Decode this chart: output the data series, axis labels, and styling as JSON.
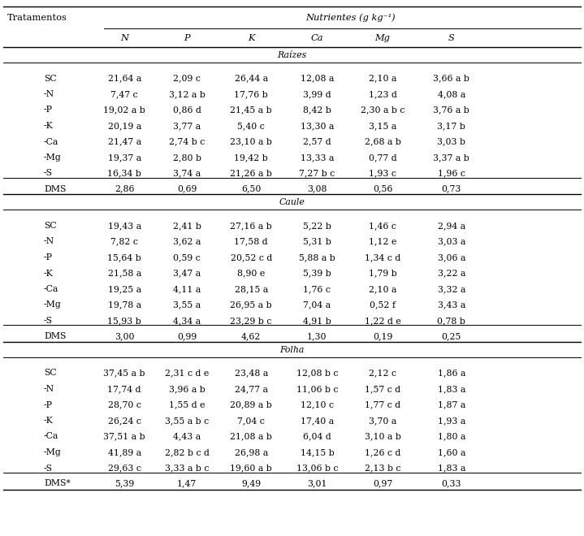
{
  "header_col1": "Tratamentos",
  "header_group": "Nutrientes (g kg⁻¹)",
  "subheaders": [
    "N",
    "P",
    "K",
    "Ca",
    "Mg",
    "S"
  ],
  "sections": [
    {
      "name": "Raízes",
      "rows": [
        [
          "SC",
          "21,64 a",
          "2,09 c",
          "26,44 a",
          "12,08 a",
          "2,10 a",
          "3,66 a b"
        ],
        [
          "-N",
          "7,47 c",
          "3,12 a b",
          "17,76 b",
          "3,99 d",
          "1,23 d",
          "4,08 a"
        ],
        [
          "-P",
          "19,02 a b",
          "0,86 d",
          "21,45 a b",
          "8,42 b",
          "2,30 a b c",
          "3,76 a b"
        ],
        [
          "-K",
          "20,19 a",
          "3,77 a",
          "5,40 c",
          "13,30 a",
          "3,15 a",
          "3,17 b"
        ],
        [
          "-Ca",
          "21,47 a",
          "2,74 b c",
          "23,10 a b",
          "2,57 d",
          "2,68 a b",
          "3,03 b"
        ],
        [
          "-Mg",
          "19,37 a",
          "2,80 b",
          "19,42 b",
          "13,33 a",
          "0,77 d",
          "3,37 a b"
        ],
        [
          "-S",
          "16,34 b",
          "3,74 a",
          "21,26 a b",
          "7,27 b c",
          "1,93 c",
          "1,96 c"
        ]
      ],
      "dms": [
        "DMS",
        "2,86",
        "0,69",
        "6,50",
        "3,08",
        "0,56",
        "0,73"
      ]
    },
    {
      "name": "Caule",
      "rows": [
        [
          "SC",
          "19,43 a",
          "2,41 b",
          "27,16 a b",
          "5,22 b",
          "1,46 c",
          "2,94 a"
        ],
        [
          "-N",
          "7,82 c",
          "3,62 a",
          "17,58 d",
          "5,31 b",
          "1,12 e",
          "3,03 a"
        ],
        [
          "-P",
          "15,64 b",
          "0,59 c",
          "20,52 c d",
          "5,88 a b",
          "1,34 c d",
          "3,06 a"
        ],
        [
          "-K",
          "21,58 a",
          "3,47 a",
          "8,90 e",
          "5,39 b",
          "1,79 b",
          "3,22 a"
        ],
        [
          "-Ca",
          "19,25 a",
          "4,11 a",
          "28,15 a",
          "1,76 c",
          "2,10 a",
          "3,32 a"
        ],
        [
          "-Mg",
          "19,78 a",
          "3,55 a",
          "26,95 a b",
          "7,04 a",
          "0,52 f",
          "3,43 a"
        ],
        [
          "-S",
          "15,93 b",
          "4,34 a",
          "23,29 b c",
          "4,91 b",
          "1,22 d e",
          "0,78 b"
        ]
      ],
      "dms": [
        "DMS",
        "3,00",
        "0,99",
        "4,62",
        "1,30",
        "0,19",
        "0,25"
      ]
    },
    {
      "name": "Folha",
      "rows": [
        [
          "SC",
          "37,45 a b",
          "2,31 c d e",
          "23,48 a",
          "12,08 b c",
          "2,12 c",
          "1,86 a"
        ],
        [
          "-N",
          "17,74 d",
          "3,96 a b",
          "24,77 a",
          "11,06 b c",
          "1,57 c d",
          "1,83 a"
        ],
        [
          "-P",
          "28,70 c",
          "1,55 d e",
          "20,89 a b",
          "12,10 c",
          "1,77 c d",
          "1,87 a"
        ],
        [
          "-K",
          "26,24 c",
          "3,55 a b c",
          "7,04 c",
          "17,40 a",
          "3,70 a",
          "1,93 a"
        ],
        [
          "-Ca",
          "37,51 a b",
          "4,43 a",
          "21,08 a b",
          "6,04 d",
          "3,10 a b",
          "1,80 a"
        ],
        [
          "-Mg",
          "41,89 a",
          "2,82 b c d",
          "26,98 a",
          "14,15 b",
          "1,26 c d",
          "1,60 a"
        ],
        [
          "-S",
          "29,63 c",
          "3,33 a b c",
          "19,60 a b",
          "13,06 b c",
          "2,13 b c",
          "1,83 a"
        ]
      ],
      "dms": [
        "DMS*",
        "5,39",
        "1,47",
        "9,49",
        "3,01",
        "0,97",
        "0,33"
      ]
    }
  ],
  "bg_color": "#ffffff",
  "text_color": "#000000",
  "font_size": 7.8,
  "header_font_size": 8.2,
  "fig_width": 7.19,
  "fig_height": 6.6,
  "dpi": 100
}
